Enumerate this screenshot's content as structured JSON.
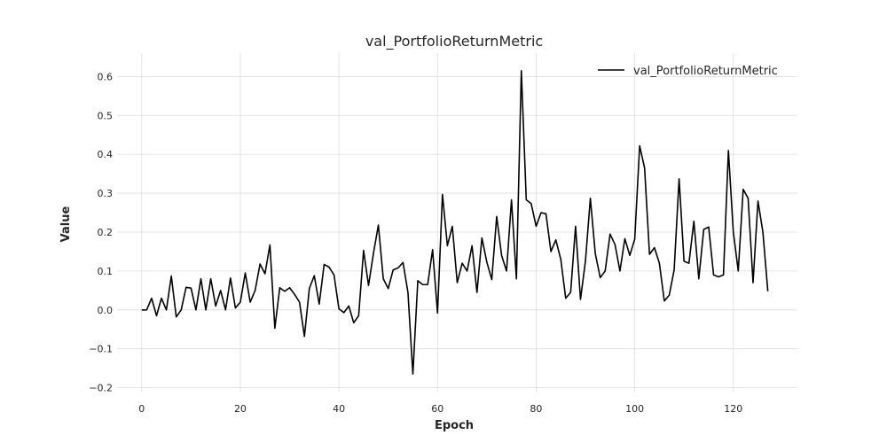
{
  "chart_data": {
    "type": "line",
    "title": "val_PortfolioReturnMetric",
    "xlabel": "Epoch",
    "ylabel": "Value",
    "xlim": [
      -5,
      133
    ],
    "ylim": [
      -0.21,
      0.66
    ],
    "xticks": [
      0,
      20,
      40,
      60,
      80,
      100,
      120
    ],
    "yticks": [
      -0.2,
      -0.1,
      0.0,
      0.1,
      0.2,
      0.3,
      0.4,
      0.5,
      0.6
    ],
    "xtick_labels": [
      "0",
      "20",
      "40",
      "60",
      "80",
      "100",
      "120"
    ],
    "ytick_labels": [
      "−0.2",
      "−0.1",
      "0.0",
      "0.1",
      "0.2",
      "0.3",
      "0.4",
      "0.5",
      "0.6"
    ],
    "grid": true,
    "legend_position": "top-right",
    "series": [
      {
        "name": "val_PortfolioReturnMetric",
        "color": "#000000",
        "x": [
          0,
          1,
          2,
          3,
          4,
          5,
          6,
          7,
          8,
          9,
          10,
          11,
          12,
          13,
          14,
          15,
          16,
          17,
          18,
          19,
          20,
          21,
          22,
          23,
          24,
          25,
          26,
          27,
          28,
          29,
          30,
          31,
          32,
          33,
          34,
          35,
          36,
          37,
          38,
          39,
          40,
          41,
          42,
          43,
          44,
          45,
          46,
          47,
          48,
          49,
          50,
          51,
          52,
          53,
          54,
          55,
          56,
          57,
          58,
          59,
          60,
          61,
          62,
          63,
          64,
          65,
          66,
          67,
          68,
          69,
          70,
          71,
          72,
          73,
          74,
          75,
          76,
          77,
          78,
          79,
          80,
          81,
          82,
          83,
          84,
          85,
          86,
          87,
          88,
          89,
          90,
          91,
          92,
          93,
          94,
          95,
          96,
          97,
          98,
          99,
          100,
          101,
          102,
          103,
          104,
          105,
          106,
          107,
          108,
          109,
          110,
          111,
          112,
          113,
          114,
          115,
          116,
          117,
          118,
          119,
          120,
          121,
          122,
          123,
          124,
          125,
          126,
          127
        ],
        "values": [
          0.0,
          0.0,
          0.03,
          -0.015,
          0.03,
          0.0,
          0.087,
          -0.018,
          0.0,
          0.058,
          0.056,
          0.0,
          0.08,
          0.0,
          0.08,
          0.01,
          0.05,
          0.0,
          0.082,
          0.005,
          0.02,
          0.095,
          0.02,
          0.05,
          0.118,
          0.093,
          0.167,
          -0.047,
          0.057,
          0.048,
          0.057,
          0.04,
          0.02,
          -0.068,
          0.055,
          0.088,
          0.015,
          0.117,
          0.11,
          0.09,
          0.003,
          -0.007,
          0.01,
          -0.033,
          -0.015,
          0.153,
          0.063,
          0.145,
          0.218,
          0.08,
          0.055,
          0.103,
          0.108,
          0.122,
          0.045,
          -0.165,
          0.075,
          0.065,
          0.065,
          0.155,
          -0.008,
          0.297,
          0.165,
          0.215,
          0.07,
          0.12,
          0.1,
          0.165,
          0.045,
          0.185,
          0.123,
          0.078,
          0.24,
          0.14,
          0.1,
          0.283,
          0.08,
          0.615,
          0.283,
          0.273,
          0.215,
          0.25,
          0.247,
          0.15,
          0.18,
          0.13,
          0.03,
          0.045,
          0.215,
          0.027,
          0.125,
          0.287,
          0.145,
          0.083,
          0.1,
          0.195,
          0.168,
          0.1,
          0.183,
          0.14,
          0.182,
          0.422,
          0.365,
          0.143,
          0.16,
          0.12,
          0.023,
          0.038,
          0.103,
          0.337,
          0.125,
          0.12,
          0.228,
          0.08,
          0.207,
          0.213,
          0.09,
          0.085,
          0.09,
          0.41,
          0.2,
          0.1,
          0.31,
          0.287,
          0.07,
          0.28,
          0.2,
          0.048
        ]
      }
    ]
  }
}
